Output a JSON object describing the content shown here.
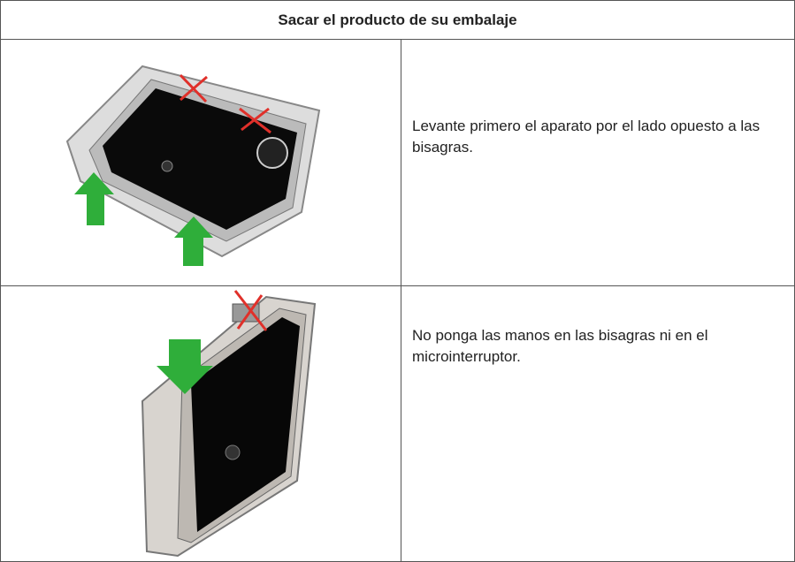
{
  "table": {
    "header": "Sacar el producto de su embalaje",
    "rows": [
      {
        "text": "Levante primero el aparato por el lado opuesto a las bisagras."
      },
      {
        "text": "No ponga las manos en las bisagras ni en el microinterruptor."
      }
    ]
  }
}
